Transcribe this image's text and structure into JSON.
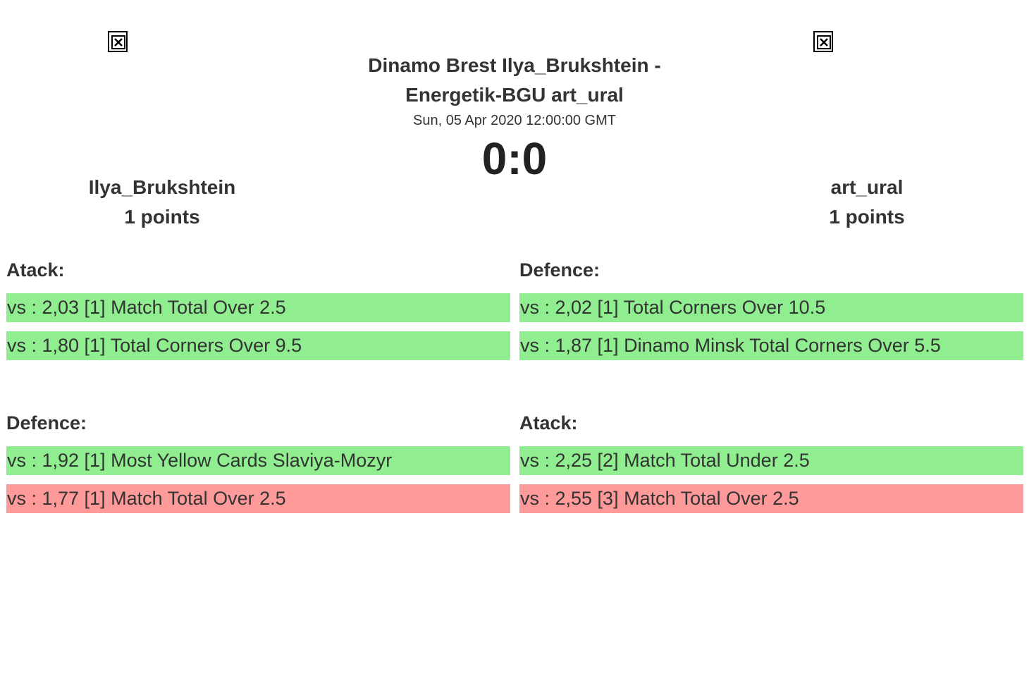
{
  "match": {
    "title_line1": "Dinamo Brest Ilya_Brukshtein -",
    "title_line2": "Energetik-BGU art_ural",
    "date": "Sun, 05 Apr 2020 12:00:00 GMT",
    "score": "0:0"
  },
  "players": {
    "left": {
      "name": "Ilya_Brukshtein",
      "points": "1 points"
    },
    "right": {
      "name": "art_ural",
      "points": "1 points"
    }
  },
  "sections": {
    "left_top": {
      "title": "Atack:",
      "rows": [
        {
          "text": "vs : 2,03 [1] Match Total Over 2.5",
          "status": "win"
        },
        {
          "text": "vs : 1,80 [1] Total Corners Over 9.5",
          "status": "win"
        }
      ]
    },
    "right_top": {
      "title": "Defence:",
      "rows": [
        {
          "text": "vs : 2,02 [1] Total Corners Over 10.5",
          "status": "win"
        },
        {
          "text": "vs : 1,87 [1] Dinamo Minsk Total Corners Over 5.5",
          "status": "win"
        }
      ]
    },
    "left_bottom": {
      "title": "Defence:",
      "rows": [
        {
          "text": "vs : 1,92 [1] Most Yellow Cards Slaviya-Mozyr",
          "status": "win"
        },
        {
          "text": "vs : 1,77 [1] Match Total Over 2.5",
          "status": "loss"
        }
      ]
    },
    "right_bottom": {
      "title": "Atack:",
      "rows": [
        {
          "text": "vs : 2,25 [2] Match Total Under 2.5",
          "status": "win"
        },
        {
          "text": "vs : 2,55 [3] Match Total Over 2.5",
          "status": "loss"
        }
      ]
    }
  },
  "colors": {
    "win": "#90ee90",
    "loss": "#ff9a9a",
    "text": "#333333"
  },
  "icons": {
    "team_logo_left": "broken-image-icon",
    "team_logo_right": "broken-image-icon"
  }
}
